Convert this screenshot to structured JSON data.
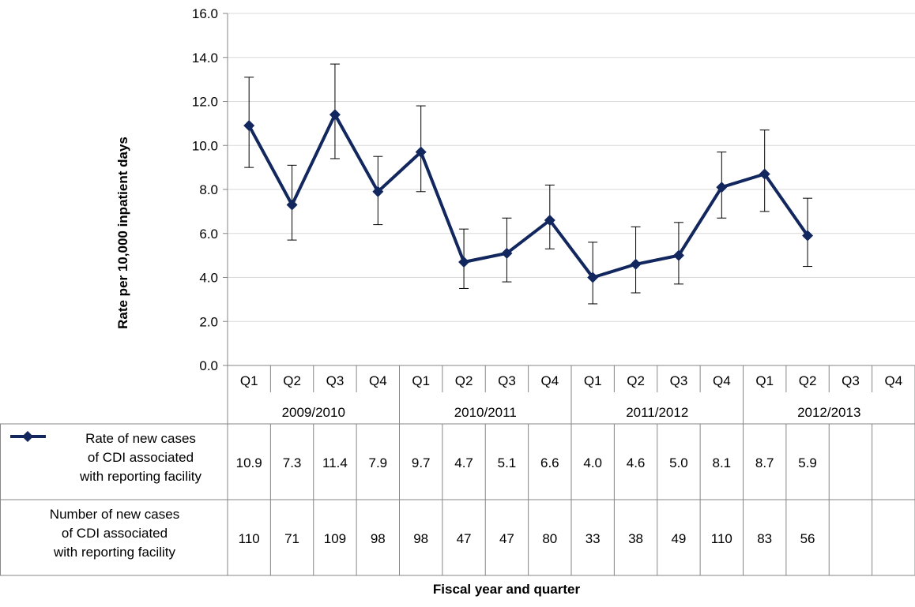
{
  "chart_data": {
    "type": "line",
    "title": "",
    "xlabel": "Fiscal year and quarter",
    "ylabel": "Rate per 10,000 inpatient days",
    "ylim": [
      0,
      16
    ],
    "y_tick_step": 2,
    "y_tick_labels": [
      "0.0",
      "2.0",
      "4.0",
      "6.0",
      "8.0",
      "10.0",
      "12.0",
      "14.0",
      "16.0"
    ],
    "grid": true,
    "categories": [
      "Q1",
      "Q2",
      "Q3",
      "Q4",
      "Q1",
      "Q2",
      "Q3",
      "Q4",
      "Q1",
      "Q2",
      "Q3",
      "Q4",
      "Q1",
      "Q2",
      "Q3",
      "Q4"
    ],
    "years": [
      "2009/2010",
      "2010/2011",
      "2011/2012",
      "2012/2013"
    ],
    "series_color": "#12275E",
    "series": [
      {
        "name": "Rate of new cases of CDI associated with reporting facility",
        "name_lines": [
          "Rate of new cases",
          "of CDI associated",
          "with reporting facility"
        ],
        "values": [
          10.9,
          7.3,
          11.4,
          7.9,
          9.7,
          4.7,
          5.1,
          6.6,
          4.0,
          4.6,
          5.0,
          8.1,
          8.7,
          5.9,
          null,
          null
        ],
        "value_labels": [
          "10.9",
          "7.3",
          "11.4",
          "7.9",
          "9.7",
          "4.7",
          "5.1",
          "6.6",
          "4.0",
          "4.6",
          "5.0",
          "8.1",
          "8.7",
          "5.9",
          "",
          ""
        ],
        "error_low": [
          9.0,
          5.7,
          9.4,
          6.4,
          7.9,
          3.5,
          3.8,
          5.3,
          2.8,
          3.3,
          3.7,
          6.7,
          7.0,
          4.5,
          null,
          null
        ],
        "error_high": [
          13.1,
          9.1,
          13.7,
          9.5,
          11.8,
          6.2,
          6.7,
          8.2,
          5.6,
          6.3,
          6.5,
          9.7,
          10.7,
          7.6,
          null,
          null
        ]
      }
    ],
    "table_rows": [
      {
        "label_lines": [
          "Number of new cases",
          "of CDI associated",
          "with reporting facility"
        ],
        "values": [
          "110",
          "71",
          "109",
          "98",
          "98",
          "47",
          "47",
          "80",
          "33",
          "38",
          "49",
          "110",
          "83",
          "56",
          "",
          ""
        ]
      }
    ]
  }
}
